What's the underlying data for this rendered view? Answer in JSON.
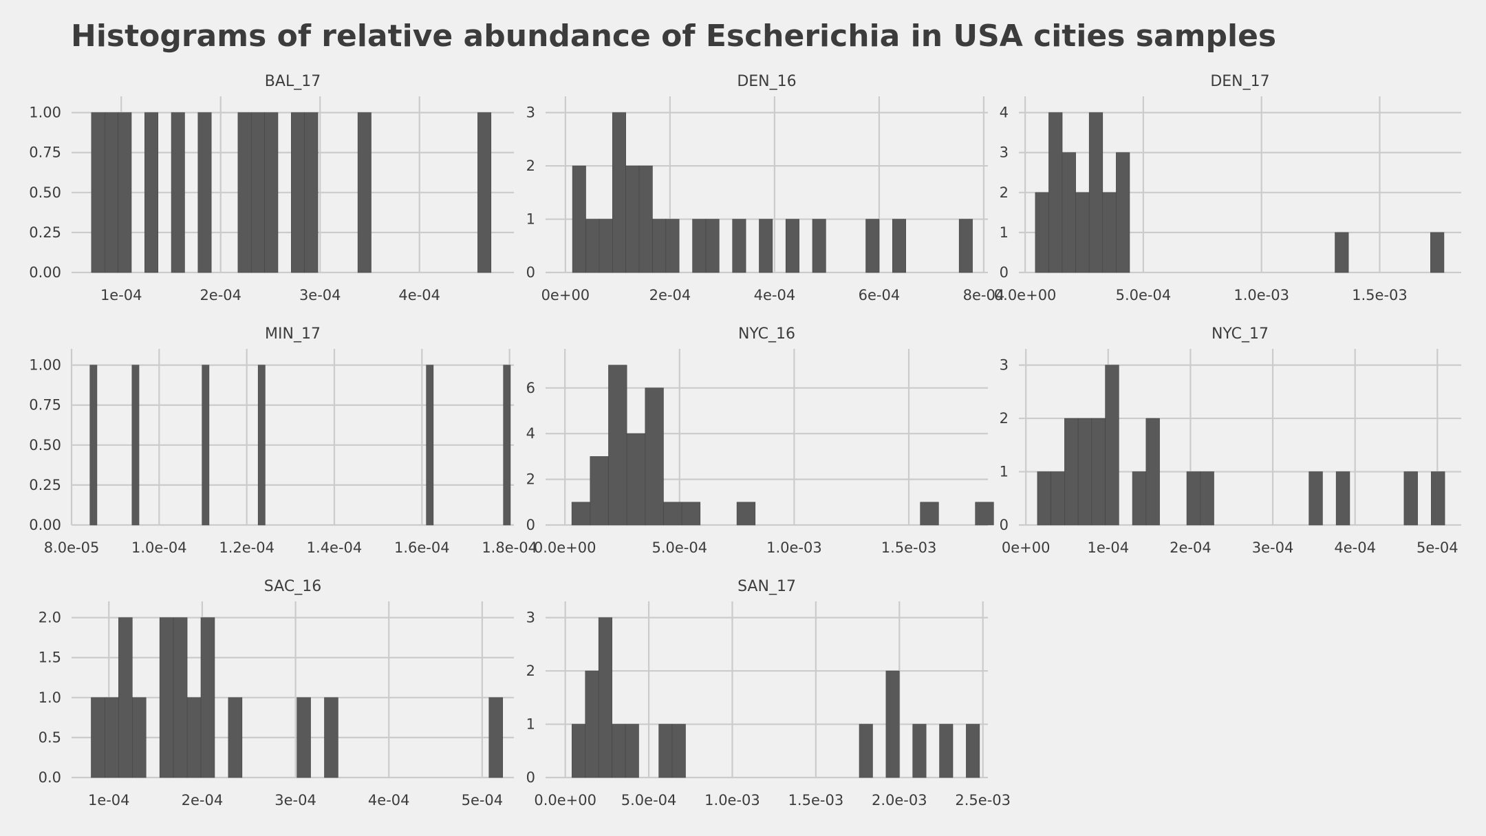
{
  "title": "Histograms of relative abundance of Escherichia in USA cities samples",
  "colors": {
    "background": "#f0f0f0",
    "bar": "#595959",
    "bar_edge": "#444444",
    "grid": "#cbcbcb",
    "text": "#3c3c3c"
  },
  "chart_data": [
    {
      "type": "bar",
      "title": "BAL_17",
      "xlabel": "",
      "ylabel": "",
      "xlim": [
        5e-05,
        0.000495
      ],
      "ylim": [
        0,
        1.05
      ],
      "x_ticks": [
        0.0001,
        0.0002,
        0.0003,
        0.0004
      ],
      "x_tick_labels": [
        "1e-04",
        "2e-04",
        "3e-04",
        "4e-04"
      ],
      "y_ticks": [
        0,
        0.25,
        0.5,
        0.75,
        1.0
      ],
      "y_tick_labels": [
        "0.00",
        "0.25",
        "0.50",
        "0.75",
        "1.00"
      ],
      "bin_width": 1.34e-05,
      "grid": true,
      "bins": [
        {
          "start": 7e-05,
          "count": 1
        },
        {
          "start": 8.34e-05,
          "count": 1
        },
        {
          "start": 9.68e-05,
          "count": 1
        },
        {
          "start": 0.0001236,
          "count": 1
        },
        {
          "start": 0.0001504,
          "count": 1
        },
        {
          "start": 0.0001772,
          "count": 1
        },
        {
          "start": 0.0002174,
          "count": 1
        },
        {
          "start": 0.0002308,
          "count": 1
        },
        {
          "start": 0.0002442,
          "count": 1
        },
        {
          "start": 0.000271,
          "count": 1
        },
        {
          "start": 0.0002844,
          "count": 1
        },
        {
          "start": 0.000338,
          "count": 1
        },
        {
          "start": 0.0004586,
          "count": 1
        }
      ]
    },
    {
      "type": "bar",
      "title": "DEN_16",
      "xlabel": "",
      "ylabel": "",
      "xlim": [
        -3.8e-05,
        0.000808
      ],
      "ylim": [
        0,
        3.15
      ],
      "x_ticks": [
        0,
        0.0002,
        0.0004,
        0.0006,
        0.0008
      ],
      "x_tick_labels": [
        "0e+00",
        "2e-04",
        "4e-04",
        "6e-04",
        "8e-04"
      ],
      "y_ticks": [
        0,
        1,
        2,
        3
      ],
      "y_tick_labels": [
        "0",
        "1",
        "2",
        "3"
      ],
      "bin_width": 2.55e-05,
      "grid": true,
      "bins": [
        {
          "start": 1.35e-05,
          "count": 2
        },
        {
          "start": 3.9e-05,
          "count": 1
        },
        {
          "start": 6.45e-05,
          "count": 1
        },
        {
          "start": 9e-05,
          "count": 3
        },
        {
          "start": 0.0001155,
          "count": 2
        },
        {
          "start": 0.000141,
          "count": 2
        },
        {
          "start": 0.0001665,
          "count": 1
        },
        {
          "start": 0.000192,
          "count": 1
        },
        {
          "start": 0.000243,
          "count": 1
        },
        {
          "start": 0.0002685,
          "count": 1
        },
        {
          "start": 0.0003195,
          "count": 1
        },
        {
          "start": 0.0003705,
          "count": 1
        },
        {
          "start": 0.0004215,
          "count": 1
        },
        {
          "start": 0.0004725,
          "count": 1
        },
        {
          "start": 0.0005745,
          "count": 1
        },
        {
          "start": 0.0006255,
          "count": 1
        },
        {
          "start": 0.000753,
          "count": 1
        }
      ]
    },
    {
      "type": "bar",
      "title": "DEN_17",
      "xlabel": "",
      "ylabel": "",
      "xlim": [
        -2.65e-05,
        0.001845
      ],
      "ylim": [
        0,
        4.2
      ],
      "x_ticks": [
        0,
        0.0005,
        0.001,
        0.0015
      ],
      "x_tick_labels": [
        "0.0e+00",
        "5.0e-04",
        "1.0e-03",
        "1.5e-03"
      ],
      "y_ticks": [
        0,
        1,
        2,
        3,
        4
      ],
      "y_tick_labels": [
        "0",
        "1",
        "2",
        "3",
        "4"
      ],
      "bin_width": 5.7e-05,
      "grid": true,
      "bins": [
        {
          "start": 4.3e-05,
          "count": 2
        },
        {
          "start": 0.0001,
          "count": 4
        },
        {
          "start": 0.000157,
          "count": 3
        },
        {
          "start": 0.000214,
          "count": 2
        },
        {
          "start": 0.000271,
          "count": 4
        },
        {
          "start": 0.000328,
          "count": 2
        },
        {
          "start": 0.000385,
          "count": 3
        },
        {
          "start": 0.001311,
          "count": 1
        },
        {
          "start": 0.001715,
          "count": 1
        }
      ]
    },
    {
      "type": "bar",
      "title": "MIN_17",
      "xlabel": "",
      "ylabel": "",
      "xlim": [
        8e-05,
        0.000181
      ],
      "ylim": [
        0,
        1.05
      ],
      "x_ticks": [
        8e-05,
        0.0001,
        0.00012,
        0.00014,
        0.00016,
        0.00018
      ],
      "x_tick_labels": [
        "8.0e-05",
        "1.0e-04",
        "1.2e-04",
        "1.4e-04",
        "1.6e-04",
        "1.8e-04"
      ],
      "y_ticks": [
        0,
        0.25,
        0.5,
        0.75,
        1.0
      ],
      "y_tick_labels": [
        "0.00",
        "0.25",
        "0.50",
        "0.75",
        "1.00"
      ],
      "bin_width": 1.6e-06,
      "grid": true,
      "bins": [
        {
          "start": 8.42e-05,
          "count": 1
        },
        {
          "start": 9.38e-05,
          "count": 1
        },
        {
          "start": 0.0001098,
          "count": 1
        },
        {
          "start": 0.0001226,
          "count": 1
        },
        {
          "start": 0.000161,
          "count": 1
        },
        {
          "start": 0.0001786,
          "count": 1
        }
      ]
    },
    {
      "type": "bar",
      "title": "NYC_16",
      "xlabel": "",
      "ylabel": "",
      "xlim": [
        -8.45e-05,
        0.001845
      ],
      "ylim": [
        0,
        7.35
      ],
      "x_ticks": [
        0,
        0.0005,
        0.001,
        0.0015
      ],
      "x_tick_labels": [
        "0.0e+00",
        "5.0e-04",
        "1.0e-03",
        "1.5e-03"
      ],
      "y_ticks": [
        0,
        2,
        4,
        6
      ],
      "y_tick_labels": [
        "0",
        "2",
        "4",
        "6"
      ],
      "bin_width": 8e-05,
      "grid": true,
      "bins": [
        {
          "start": 3e-05,
          "count": 1
        },
        {
          "start": 0.00011,
          "count": 3
        },
        {
          "start": 0.00019,
          "count": 7
        },
        {
          "start": 0.00027,
          "count": 4
        },
        {
          "start": 0.00035,
          "count": 6
        },
        {
          "start": 0.00043,
          "count": 1
        },
        {
          "start": 0.00051,
          "count": 1
        },
        {
          "start": 0.00075,
          "count": 1
        },
        {
          "start": 0.00155,
          "count": 1
        },
        {
          "start": 0.00179,
          "count": 1
        }
      ]
    },
    {
      "type": "bar",
      "title": "NYC_17",
      "xlabel": "",
      "ylabel": "",
      "xlim": [
        -8.5e-06,
        0.000529
      ],
      "ylim": [
        0,
        3.15
      ],
      "x_ticks": [
        0,
        0.0001,
        0.0002,
        0.0003,
        0.0004,
        0.0005
      ],
      "x_tick_labels": [
        "0e+00",
        "1e-04",
        "2e-04",
        "3e-04",
        "4e-04",
        "5e-04"
      ],
      "y_ticks": [
        0,
        1,
        2,
        3
      ],
      "y_tick_labels": [
        "0",
        "1",
        "2",
        "3"
      ],
      "bin_width": 1.65e-05,
      "grid": true,
      "bins": [
        {
          "start": 1.4e-05,
          "count": 1
        },
        {
          "start": 3.05e-05,
          "count": 1
        },
        {
          "start": 4.7e-05,
          "count": 2
        },
        {
          "start": 6.35e-05,
          "count": 2
        },
        {
          "start": 8e-05,
          "count": 2
        },
        {
          "start": 9.65e-05,
          "count": 3
        },
        {
          "start": 0.0001295,
          "count": 1
        },
        {
          "start": 0.000146,
          "count": 2
        },
        {
          "start": 0.0001955,
          "count": 1
        },
        {
          "start": 0.000212,
          "count": 1
        },
        {
          "start": 0.000344,
          "count": 1
        },
        {
          "start": 0.000377,
          "count": 1
        },
        {
          "start": 0.0004595,
          "count": 1
        },
        {
          "start": 0.0004925,
          "count": 1
        }
      ]
    },
    {
      "type": "bar",
      "title": "SAC_16",
      "xlabel": "",
      "ylabel": "",
      "xlim": [
        6e-05,
        0.000534
      ],
      "ylim": [
        0,
        2.1
      ],
      "x_ticks": [
        0.0001,
        0.0002,
        0.0003,
        0.0004,
        0.0005
      ],
      "x_tick_labels": [
        "1e-04",
        "2e-04",
        "3e-04",
        "4e-04",
        "5e-04"
      ],
      "y_ticks": [
        0,
        0.5,
        1.0,
        1.5,
        2.0
      ],
      "y_tick_labels": [
        "0.0",
        "0.5",
        "1.0",
        "1.5",
        "2.0"
      ],
      "bin_width": 1.47e-05,
      "grid": true,
      "bins": [
        {
          "start": 8.1e-05,
          "count": 1
        },
        {
          "start": 9.57e-05,
          "count": 1
        },
        {
          "start": 0.0001104,
          "count": 2
        },
        {
          "start": 0.0001251,
          "count": 1
        },
        {
          "start": 0.0001545,
          "count": 2
        },
        {
          "start": 0.0001692,
          "count": 2
        },
        {
          "start": 0.0001839,
          "count": 1
        },
        {
          "start": 0.0001986,
          "count": 2
        },
        {
          "start": 0.000228,
          "count": 1
        },
        {
          "start": 0.0003015,
          "count": 1
        },
        {
          "start": 0.0003309,
          "count": 1
        },
        {
          "start": 0.0005073,
          "count": 1
        }
      ]
    },
    {
      "type": "bar",
      "title": "SAN_17",
      "xlabel": "",
      "ylabel": "",
      "xlim": [
        -0.000118,
        0.00253
      ],
      "ylim": [
        0,
        3.15
      ],
      "x_ticks": [
        0,
        0.0005,
        0.001,
        0.0015,
        0.002,
        0.0025
      ],
      "x_tick_labels": [
        "0.0e+00",
        "5.0e-04",
        "1.0e-03",
        "1.5e-03",
        "2.0e-03",
        "2.5e-03"
      ],
      "y_ticks": [
        0,
        1,
        2,
        3
      ],
      "y_tick_labels": [
        "0",
        "1",
        "2",
        "3"
      ],
      "bin_width": 8e-05,
      "grid": true,
      "bins": [
        {
          "start": 4e-05,
          "count": 1
        },
        {
          "start": 0.00012,
          "count": 2
        },
        {
          "start": 0.0002,
          "count": 3
        },
        {
          "start": 0.00028,
          "count": 1
        },
        {
          "start": 0.00036,
          "count": 1
        },
        {
          "start": 0.00056,
          "count": 1
        },
        {
          "start": 0.00064,
          "count": 1
        },
        {
          "start": 0.00176,
          "count": 1
        },
        {
          "start": 0.00192,
          "count": 2
        },
        {
          "start": 0.00208,
          "count": 1
        },
        {
          "start": 0.00224,
          "count": 1
        },
        {
          "start": 0.0024,
          "count": 1
        }
      ]
    }
  ]
}
